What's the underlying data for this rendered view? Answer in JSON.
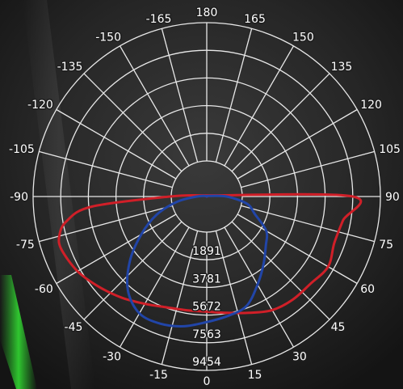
{
  "chart_data": {
    "type": "polar",
    "title": "",
    "angle_labels": [
      "180",
      "165",
      "150",
      "135",
      "120",
      "105",
      "90",
      "75",
      "60",
      "45",
      "30",
      "15",
      "0",
      "-15",
      "-30",
      "-45",
      "-60",
      "-75",
      "-90",
      "-105",
      "-120",
      "-135",
      "-150",
      "-165"
    ],
    "angle_values": [
      180,
      165,
      150,
      135,
      120,
      105,
      90,
      75,
      60,
      45,
      30,
      15,
      0,
      -15,
      -30,
      -45,
      -60,
      -75,
      -90,
      -105,
      -120,
      -135,
      -150,
      -165
    ],
    "radial_ticks": [
      "1891",
      "3781",
      "5672",
      "7563",
      "9454"
    ],
    "radial_values": [
      1891,
      3781,
      5672,
      7563,
      9454
    ],
    "r_max": 9454,
    "series": [
      {
        "color": "#d01f28",
        "points": [
          {
            "angle": 90,
            "r": 7570
          },
          {
            "angle": 80,
            "r": 7030
          },
          {
            "angle": 70,
            "r": 6860
          },
          {
            "angle": 60,
            "r": 7160
          },
          {
            "angle": 50,
            "r": 6840
          },
          {
            "angle": 40,
            "r": 6750
          },
          {
            "angle": 30,
            "r": 6530
          },
          {
            "angle": 20,
            "r": 6030
          },
          {
            "angle": 10,
            "r": 5640
          },
          {
            "angle": 0,
            "r": 5440
          },
          {
            "angle": -10,
            "r": 5460
          },
          {
            "angle": -20,
            "r": 5630
          },
          {
            "angle": -30,
            "r": 6040
          },
          {
            "angle": -40,
            "r": 6600
          },
          {
            "angle": -50,
            "r": 7180
          },
          {
            "angle": -60,
            "r": 7780
          },
          {
            "angle": -70,
            "r": 8150
          },
          {
            "angle": -75,
            "r": 8020
          },
          {
            "angle": -80,
            "r": 7320
          },
          {
            "angle": -85,
            "r": 5470
          },
          {
            "angle": -90,
            "r": 1100
          },
          {
            "angle": -100,
            "r": 200
          },
          {
            "angle": -110,
            "r": 50
          },
          {
            "angle": 180,
            "r": 0
          },
          {
            "angle": 110,
            "r": 50
          },
          {
            "angle": 100,
            "r": 200
          }
        ]
      },
      {
        "color": "#2145a8",
        "points": [
          {
            "angle": 90,
            "r": 600
          },
          {
            "angle": 80,
            "r": 1220
          },
          {
            "angle": 70,
            "r": 1530
          },
          {
            "angle": 60,
            "r": 2270
          },
          {
            "angle": 50,
            "r": 2840
          },
          {
            "angle": 40,
            "r": 3610
          },
          {
            "angle": 30,
            "r": 4520
          },
          {
            "angle": 20,
            "r": 5530
          },
          {
            "angle": 10,
            "r": 5860
          },
          {
            "angle": 0,
            "r": 6150
          },
          {
            "angle": -10,
            "r": 6570
          },
          {
            "angle": -20,
            "r": 6820
          },
          {
            "angle": -30,
            "r": 6790
          },
          {
            "angle": -40,
            "r": 5960
          },
          {
            "angle": -50,
            "r": 4440
          },
          {
            "angle": -60,
            "r": 2740
          },
          {
            "angle": -70,
            "r": 1600
          },
          {
            "angle": -80,
            "r": 900
          },
          {
            "angle": -90,
            "r": 300
          },
          {
            "angle": -110,
            "r": 50
          },
          {
            "angle": 180,
            "r": 0
          },
          {
            "angle": 110,
            "r": 50
          }
        ]
      }
    ],
    "grid": true,
    "legend": "none"
  }
}
